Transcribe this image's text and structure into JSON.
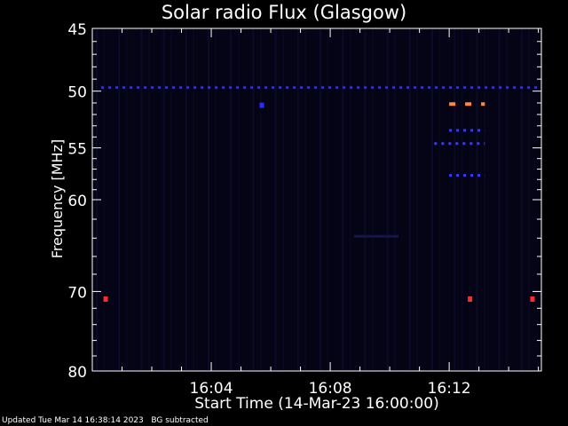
{
  "chart_data": {
    "type": "heatmap",
    "title": "Solar radio Flux (Glasgow)",
    "xlabel": "Start Time (14-Mar-23 16:00:00)",
    "ylabel": "Frequency [MHz]",
    "x_range_minutes": [
      0,
      15.1
    ],
    "x_tick_values_minutes": [
      4,
      8,
      12
    ],
    "x_tick_labels": [
      "16:04",
      "16:08",
      "16:12"
    ],
    "y_range_mhz": [
      45,
      80
    ],
    "y_ticks": [
      45,
      50,
      55,
      60,
      70,
      80
    ],
    "y_tick_labels": [
      "45",
      "50",
      "55",
      "60",
      "70",
      "80"
    ],
    "y_scale": "log",
    "background_color": "#040414",
    "features": [
      {
        "kind": "band",
        "freq_mhz": 49.7,
        "start_min": 0.3,
        "end_min": 15.0,
        "color": "#2a2aff",
        "intensity": "low"
      },
      {
        "kind": "band",
        "freq_mhz": 51.1,
        "start_min": 12.0,
        "end_min": 13.2,
        "color": "#ff8844",
        "intensity": "high"
      },
      {
        "kind": "band",
        "freq_mhz": 53.4,
        "start_min": 12.0,
        "end_min": 13.2,
        "color": "#3a3aff",
        "intensity": "low"
      },
      {
        "kind": "band",
        "freq_mhz": 54.6,
        "start_min": 11.5,
        "end_min": 13.2,
        "color": "#3a3aff",
        "intensity": "low"
      },
      {
        "kind": "band",
        "freq_mhz": 57.6,
        "start_min": 12.0,
        "end_min": 13.2,
        "color": "#3a3aff",
        "intensity": "low"
      },
      {
        "kind": "band",
        "freq_mhz": 63.8,
        "start_min": 8.8,
        "end_min": 10.3,
        "color": "#141450",
        "intensity": "faint"
      },
      {
        "kind": "spot",
        "freq_mhz": 70.9,
        "time_min": 0.45,
        "color": "#ff2a2a",
        "intensity": "high"
      },
      {
        "kind": "spot",
        "freq_mhz": 70.9,
        "time_min": 12.7,
        "color": "#ff2a2a",
        "intensity": "high"
      },
      {
        "kind": "spot",
        "freq_mhz": 70.9,
        "time_min": 14.8,
        "color": "#ff2a2a",
        "intensity": "high"
      },
      {
        "kind": "spot",
        "freq_mhz": 51.2,
        "time_min": 5.7,
        "color": "#2a2aff",
        "intensity": "low"
      }
    ],
    "grid": false,
    "legend": "none"
  },
  "footer": {
    "updated": "Updated Tue Mar 14 16:38:14 2023",
    "note": "BG subtracted"
  },
  "colors": {
    "axes": "#ffffff",
    "text": "#ffffff",
    "page_background": "#000000"
  }
}
